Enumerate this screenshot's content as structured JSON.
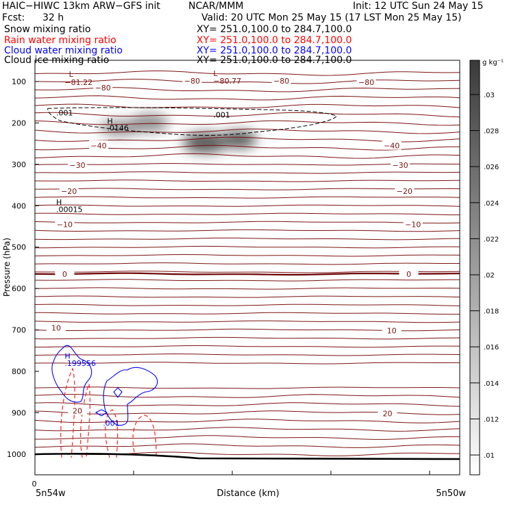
{
  "header": {
    "title": "HAIC−HIWC 13km ARW−GFS init",
    "org": "NCAR/MMM",
    "init": "Init: 12 UTC Sun 24 May 15",
    "fcst_label": "Fcst:",
    "fcst_value": "32 h",
    "valid": "Valid: 20 UTC Mon 25 May 15 (17 LST Mon 25 May 15)"
  },
  "legend": [
    {
      "name": "Snow mixing ratio",
      "xy": "XY= 251.0,100.0 to 284.7,100.0",
      "color": "#000000"
    },
    {
      "name": "Rain water mixing ratio",
      "xy": "XY= 251.0,100.0 to 284.7,100.0",
      "color": "#ff0000"
    },
    {
      "name": "Cloud water mixing ratio",
      "xy": "XY= 251.0,100.0 to 284.7,100.0",
      "color": "#0000ff"
    },
    {
      "name": "Cloud ice mixing ratio",
      "xy": "XY= 251.0,100.0 to 284.7,100.0",
      "color": "#000000"
    }
  ],
  "chart_data": {
    "type": "heatmap",
    "ylabel": "Pressure (hPa)",
    "xlabel": "Distance (km)",
    "ylim": [
      1050,
      50
    ],
    "yticks": [
      100,
      200,
      300,
      400,
      500,
      600,
      700,
      800,
      900,
      1000
    ],
    "x_start_tick": "0",
    "x_left_label": "5n54w",
    "x_right_label": "5n50w",
    "colorbar": {
      "unit": "g kg⁻¹",
      "ticks": [
        ".01",
        ".012",
        ".014",
        ".016",
        ".018",
        ".02",
        ".022",
        ".024",
        ".026",
        ".028",
        ".03"
      ]
    },
    "temperature_labels": [
      {
        "text": "−80",
        "pressure": 115,
        "pos": 0.16
      },
      {
        "text": "−80",
        "pressure": 98,
        "pos": 0.37
      },
      {
        "text": "−80",
        "pressure": 98,
        "pos": 0.58
      },
      {
        "text": "−80",
        "pressure": 102,
        "pos": 0.78
      },
      {
        "text": "−40",
        "pressure": 255,
        "pos": 0.15
      },
      {
        "text": "−40",
        "pressure": 255,
        "pos": 0.84
      },
      {
        "text": "−30",
        "pressure": 302,
        "pos": 0.1
      },
      {
        "text": "−30",
        "pressure": 302,
        "pos": 0.86
      },
      {
        "text": "−20",
        "pressure": 365,
        "pos": 0.08
      },
      {
        "text": "−20",
        "pressure": 365,
        "pos": 0.87
      },
      {
        "text": "−10",
        "pressure": 445,
        "pos": 0.07
      },
      {
        "text": "−10",
        "pressure": 445,
        "pos": 0.89
      },
      {
        "text": "0",
        "pressure": 565,
        "pos": 0.07
      },
      {
        "text": "0",
        "pressure": 565,
        "pos": 0.88
      },
      {
        "text": "10",
        "pressure": 695,
        "pos": 0.05
      },
      {
        "text": "10",
        "pressure": 702,
        "pos": 0.84
      },
      {
        "text": "20",
        "pressure": 895,
        "pos": 0.1
      },
      {
        "text": "20",
        "pressure": 902,
        "pos": 0.83
      }
    ],
    "extrema_labels": [
      {
        "text": "L",
        "pressure": 82,
        "pos": 0.08
      },
      {
        "text": "−81.22",
        "pressure": 102,
        "pos": 0.07
      },
      {
        "text": "L",
        "pressure": 80,
        "pos": 0.42
      },
      {
        "text": "−80.77",
        "pressure": 98,
        "pos": 0.42
      },
      {
        "text": "H",
        "pressure": 195,
        "pos": 0.17
      },
      {
        "text": ".0146",
        "pressure": 212,
        "pos": 0.17
      },
      {
        "text": "H",
        "pressure": 391,
        "pos": 0.05
      },
      {
        "text": ".00015",
        "pressure": 409,
        "pos": 0.05
      },
      {
        "text": ".001",
        "pressure": 175,
        "pos": 0.05
      },
      {
        "text": ".001",
        "pressure": 180,
        "pos": 0.42
      },
      {
        "text": "H",
        "pressure": 763,
        "pos": 0.07
      },
      {
        "text": ".199556",
        "pressure": 780,
        "pos": 0.07
      },
      {
        "text": ".001",
        "pressure": 925,
        "pos": 0.16
      }
    ],
    "snow_maxima": [
      {
        "pos": 0.2,
        "pressure": 212,
        "value": 0.0146
      },
      {
        "pos": 0.43,
        "pressure": 248,
        "value": 0.03
      }
    ]
  }
}
